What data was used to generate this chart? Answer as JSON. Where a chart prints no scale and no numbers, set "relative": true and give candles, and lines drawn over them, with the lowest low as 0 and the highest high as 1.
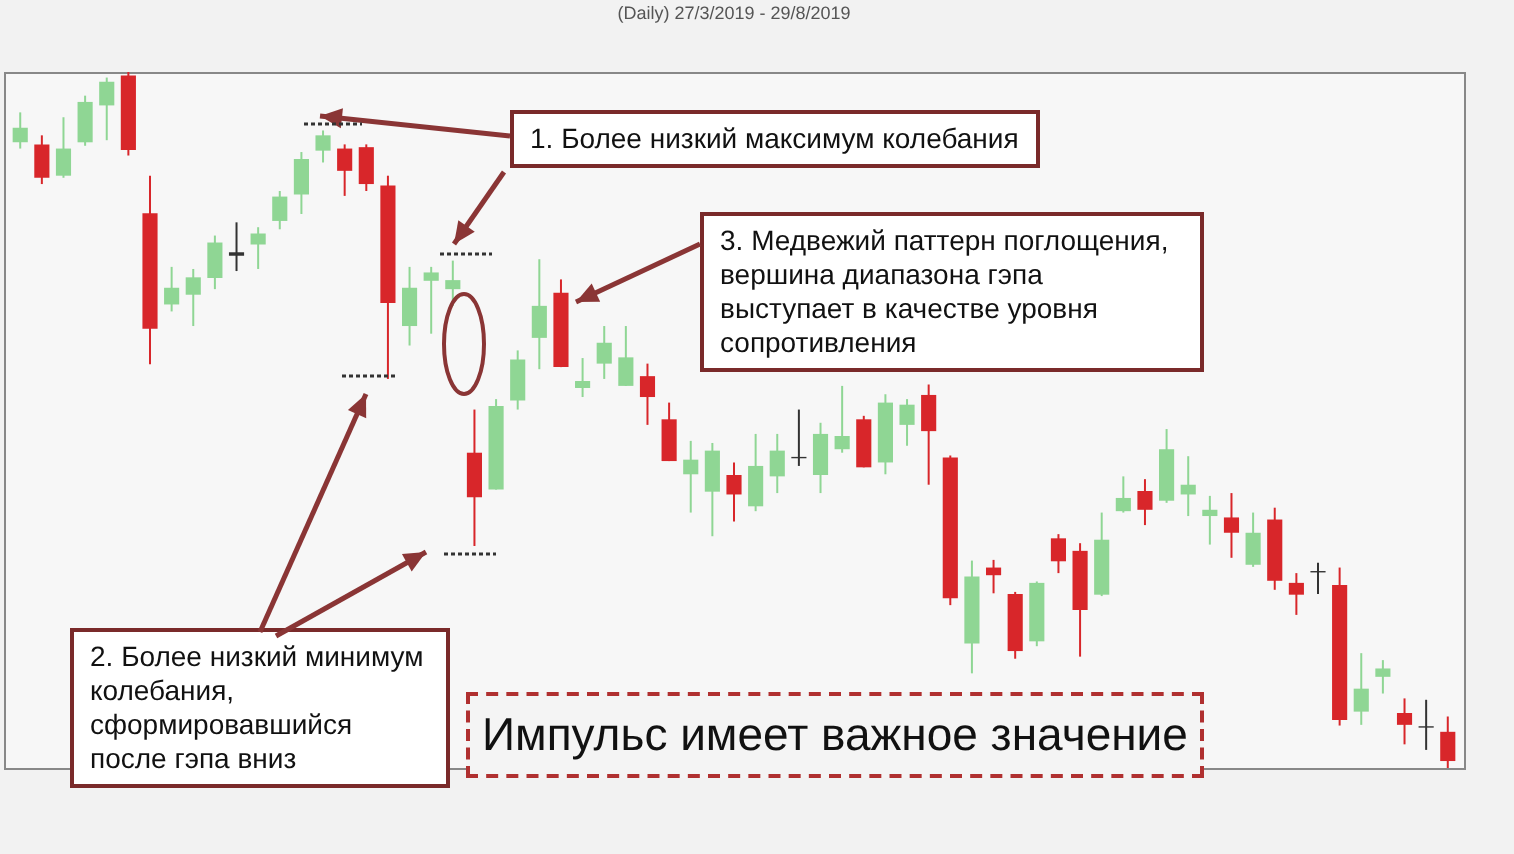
{
  "chart_data": {
    "type": "candlestick",
    "title": "(Daily) 27/3/2019 - 29/8/2019",
    "relative": true,
    "tick_labels": false,
    "categories": [
      null,
      null,
      null,
      null,
      null,
      null,
      null,
      null,
      null,
      null,
      null,
      null,
      null,
      null,
      null,
      null,
      null,
      null,
      null,
      null,
      null,
      null,
      null,
      null,
      null,
      null,
      null,
      null,
      null,
      null,
      null,
      null,
      null,
      null,
      null,
      null,
      null,
      null,
      null,
      null,
      null,
      null,
      null,
      null,
      null,
      null,
      null,
      null,
      null,
      null,
      null,
      null,
      null,
      null,
      null,
      null,
      null,
      null,
      null,
      null,
      null,
      null,
      null,
      null,
      null,
      null,
      null
    ],
    "ohlc": [
      [
        0.899,
        0.942,
        0.89,
        0.92
      ],
      [
        0.896,
        0.909,
        0.839,
        0.848
      ],
      [
        0.851,
        0.935,
        0.848,
        0.89
      ],
      [
        0.899,
        0.966,
        0.894,
        0.957
      ],
      [
        0.952,
        0.992,
        0.902,
        0.986
      ],
      [
        0.995,
        1.0,
        0.88,
        0.888
      ],
      [
        0.797,
        0.851,
        0.58,
        0.631
      ],
      [
        0.666,
        0.72,
        0.656,
        0.69
      ],
      [
        0.68,
        0.717,
        0.635,
        0.705
      ],
      [
        0.704,
        0.765,
        0.688,
        0.755
      ],
      [
        0.741,
        0.784,
        0.714,
        0.736
      ],
      [
        0.752,
        0.777,
        0.717,
        0.768
      ],
      [
        0.786,
        0.829,
        0.774,
        0.821
      ],
      [
        0.824,
        0.885,
        0.796,
        0.875
      ],
      [
        0.887,
        0.916,
        0.87,
        0.909
      ],
      [
        0.89,
        0.896,
        0.822,
        0.858
      ],
      [
        0.892,
        0.896,
        0.829,
        0.839
      ],
      [
        0.837,
        0.851,
        0.559,
        0.668
      ],
      [
        0.635,
        0.72,
        0.607,
        0.69
      ],
      [
        0.7,
        0.72,
        0.624,
        0.712
      ],
      [
        0.688,
        0.729,
        0.664,
        0.701
      ],
      [
        0.453,
        0.515,
        0.319,
        0.389
      ],
      [
        0.4,
        0.53,
        0.4,
        0.52
      ],
      [
        0.528,
        0.6,
        0.515,
        0.587
      ],
      [
        0.618,
        0.731,
        0.573,
        0.664
      ],
      [
        0.683,
        0.702,
        0.576,
        0.576
      ],
      [
        0.546,
        0.589,
        0.533,
        0.556
      ],
      [
        0.581,
        0.635,
        0.559,
        0.611
      ],
      [
        0.549,
        0.635,
        0.549,
        0.59
      ],
      [
        0.563,
        0.581,
        0.493,
        0.533
      ],
      [
        0.501,
        0.525,
        0.441,
        0.441
      ],
      [
        0.422,
        0.47,
        0.367,
        0.443
      ],
      [
        0.397,
        0.467,
        0.333,
        0.456
      ],
      [
        0.421,
        0.439,
        0.354,
        0.393
      ],
      [
        0.376,
        0.48,
        0.369,
        0.434
      ],
      [
        0.419,
        0.48,
        0.395,
        0.456
      ],
      [
        0.447,
        0.515,
        0.434,
        0.445
      ],
      [
        0.421,
        0.496,
        0.395,
        0.48
      ],
      [
        0.458,
        0.549,
        0.453,
        0.477
      ],
      [
        0.501,
        0.506,
        0.432,
        0.432
      ],
      [
        0.439,
        0.537,
        0.422,
        0.525
      ],
      [
        0.493,
        0.53,
        0.463,
        0.522
      ],
      [
        0.536,
        0.551,
        0.407,
        0.484
      ],
      [
        0.446,
        0.449,
        0.234,
        0.244
      ],
      [
        0.179,
        0.298,
        0.136,
        0.275
      ],
      [
        0.288,
        0.299,
        0.251,
        0.277
      ],
      [
        0.25,
        0.253,
        0.157,
        0.168
      ],
      [
        0.182,
        0.268,
        0.175,
        0.266
      ],
      [
        0.33,
        0.336,
        0.28,
        0.297
      ],
      [
        0.312,
        0.323,
        0.16,
        0.227
      ],
      [
        0.249,
        0.367,
        0.247,
        0.328
      ],
      [
        0.369,
        0.419,
        0.367,
        0.388
      ],
      [
        0.398,
        0.415,
        0.349,
        0.371
      ],
      [
        0.384,
        0.487,
        0.381,
        0.458
      ],
      [
        0.393,
        0.448,
        0.362,
        0.407
      ],
      [
        0.362,
        0.391,
        0.321,
        0.371
      ],
      [
        0.36,
        0.395,
        0.302,
        0.338
      ],
      [
        0.292,
        0.367,
        0.289,
        0.338
      ],
      [
        0.357,
        0.374,
        0.256,
        0.269
      ],
      [
        0.266,
        0.28,
        0.22,
        0.249
      ],
      [
        0.283,
        0.295,
        0.25,
        0.281
      ],
      [
        0.263,
        0.288,
        0.061,
        0.069
      ],
      [
        0.081,
        0.165,
        0.062,
        0.114
      ],
      [
        0.131,
        0.155,
        0.107,
        0.143
      ],
      [
        0.079,
        0.1,
        0.034,
        0.062
      ],
      [
        0.06,
        0.098,
        0.026,
        0.058
      ],
      [
        0.052,
        0.074,
        0.0,
        0.01
      ]
    ],
    "colors": [
      "#8fd694",
      "#d8262a",
      "#8fd694",
      "#8fd694",
      "#8fd694",
      "#d8262a",
      "#d8262a",
      "#8fd694",
      "#8fd694",
      "#8fd694",
      "#333333",
      "#8fd694",
      "#8fd694",
      "#8fd694",
      "#8fd694",
      "#d8262a",
      "#d8262a",
      "#d8262a",
      "#8fd694",
      "#8fd694",
      "#8fd694",
      "#d8262a",
      "#8fd694",
      "#8fd694",
      "#8fd694",
      "#d8262a",
      "#8fd694",
      "#8fd694",
      "#8fd694",
      "#d8262a",
      "#d8262a",
      "#8fd694",
      "#8fd694",
      "#d8262a",
      "#8fd694",
      "#8fd694",
      "#333333",
      "#8fd694",
      "#8fd694",
      "#d8262a",
      "#8fd694",
      "#8fd694",
      "#d8262a",
      "#d8262a",
      "#8fd694",
      "#d8262a",
      "#d8262a",
      "#8fd694",
      "#d8262a",
      "#d8262a",
      "#8fd694",
      "#8fd694",
      "#d8262a",
      "#8fd694",
      "#8fd694",
      "#8fd694",
      "#d8262a",
      "#8fd694",
      "#d8262a",
      "#d8262a",
      "#333333",
      "#d8262a",
      "#8fd694",
      "#8fd694",
      "#d8262a",
      "#333333",
      "#d8262a"
    ],
    "annotations": [
      "1. Более низкий максимум колебания",
      "2. Более низкий минимум колебания, сформировавшийся после гэпа вниз",
      "3. Медвежий паттерн поглощения, вершина диапазона гэпа выступает в качестве уровня сопротивления",
      "Импульс имеет важное значение"
    ]
  }
}
